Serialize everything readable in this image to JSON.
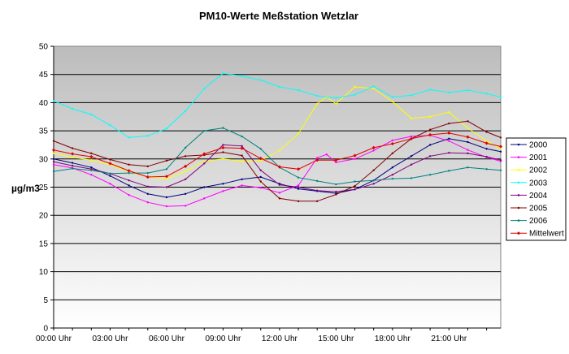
{
  "chart_data": {
    "type": "line",
    "title": "PM10-Werte Meßstation Wetzlar",
    "xlabel": "",
    "ylabel": "µg/m3",
    "ylim": [
      0,
      50
    ],
    "yticks": [
      0,
      5,
      10,
      15,
      20,
      25,
      30,
      35,
      40,
      45,
      50
    ],
    "xlim": [
      0,
      23.75
    ],
    "xticks": [
      {
        "x": 0,
        "label": "00:00 Uhr"
      },
      {
        "x": 3,
        "label": "03:00 Uhr"
      },
      {
        "x": 6,
        "label": "06:00 Uhr"
      },
      {
        "x": 9,
        "label": "09:00 Uhr"
      },
      {
        "x": 12,
        "label": "12:00 Uhr"
      },
      {
        "x": 15,
        "label": "15:00 Uhr"
      },
      {
        "x": 18,
        "label": "18:00 Uhr"
      },
      {
        "x": 21,
        "label": "21:00 Uhr"
      }
    ],
    "grid": true,
    "legend": "right",
    "series": [
      {
        "name": "2000",
        "color": "#000080",
        "points": [
          [
            0,
            30.0
          ],
          [
            1,
            29.3
          ],
          [
            2,
            28.5
          ],
          [
            3,
            27.0
          ],
          [
            4,
            25.3
          ],
          [
            5,
            23.8
          ],
          [
            6,
            23.2
          ],
          [
            7,
            23.8
          ],
          [
            8,
            25.0
          ],
          [
            9,
            25.6
          ],
          [
            10,
            26.4
          ],
          [
            11,
            26.8
          ],
          [
            12,
            25.6
          ],
          [
            13,
            24.7
          ],
          [
            14,
            24.3
          ],
          [
            15,
            23.9
          ],
          [
            16,
            24.6
          ],
          [
            17,
            26.2
          ],
          [
            18,
            28.5
          ],
          [
            19,
            30.5
          ],
          [
            20,
            32.5
          ],
          [
            21,
            33.6
          ],
          [
            22,
            33.0
          ],
          [
            23,
            31.8
          ],
          [
            23.75,
            31.3
          ]
        ]
      },
      {
        "name": "2001",
        "color": "#FF00FF",
        "points": [
          [
            0,
            29.0
          ],
          [
            1,
            28.4
          ],
          [
            2,
            27.2
          ],
          [
            3,
            25.6
          ],
          [
            4,
            23.6
          ],
          [
            5,
            22.3
          ],
          [
            6,
            21.6
          ],
          [
            7,
            21.7
          ],
          [
            8,
            23.0
          ],
          [
            9,
            24.3
          ],
          [
            10,
            25.3
          ],
          [
            11,
            24.9
          ],
          [
            12,
            24.0
          ],
          [
            13,
            25.3
          ],
          [
            14,
            30.2
          ],
          [
            14.5,
            30.8
          ],
          [
            15,
            29.4
          ],
          [
            16,
            30.0
          ],
          [
            17,
            31.5
          ],
          [
            18,
            33.3
          ],
          [
            19,
            34.0
          ],
          [
            20,
            34.2
          ],
          [
            21,
            33.2
          ],
          [
            22,
            31.6
          ],
          [
            23,
            30.3
          ],
          [
            23.75,
            29.6
          ]
        ]
      },
      {
        "name": "2002",
        "color": "#FFFF00",
        "points": [
          [
            0,
            31.0
          ],
          [
            1,
            30.3
          ],
          [
            2,
            29.8
          ],
          [
            3,
            29.0
          ],
          [
            4,
            27.8
          ],
          [
            5,
            26.8
          ],
          [
            6,
            26.5
          ],
          [
            7,
            27.8
          ],
          [
            8,
            29.6
          ],
          [
            9,
            30.0
          ],
          [
            10,
            29.6
          ],
          [
            11,
            29.7
          ],
          [
            12,
            31.5
          ],
          [
            13,
            34.5
          ],
          [
            14,
            39.8
          ],
          [
            14.5,
            41.0
          ],
          [
            15,
            39.8
          ],
          [
            16,
            42.8
          ],
          [
            17,
            42.5
          ],
          [
            18,
            40.2
          ],
          [
            19,
            37.2
          ],
          [
            20,
            37.5
          ],
          [
            21,
            38.3
          ],
          [
            22,
            35.5
          ],
          [
            23,
            33.2
          ],
          [
            23.75,
            31.8
          ]
        ]
      },
      {
        "name": "2003",
        "color": "#00FFFF",
        "points": [
          [
            0,
            40.3
          ],
          [
            1,
            38.9
          ],
          [
            2,
            37.9
          ],
          [
            3,
            36.0
          ],
          [
            4,
            33.8
          ],
          [
            5,
            34.1
          ],
          [
            6,
            35.4
          ],
          [
            7,
            38.5
          ],
          [
            8,
            42.5
          ],
          [
            9,
            45.2
          ],
          [
            10,
            44.7
          ],
          [
            11,
            44.0
          ],
          [
            12,
            42.8
          ],
          [
            13,
            42.2
          ],
          [
            14,
            41.2
          ],
          [
            15,
            40.8
          ],
          [
            16,
            41.4
          ],
          [
            17,
            42.9
          ],
          [
            18,
            41.0
          ],
          [
            19,
            41.3
          ],
          [
            20,
            42.3
          ],
          [
            21,
            41.8
          ],
          [
            22,
            42.2
          ],
          [
            23,
            41.6
          ],
          [
            23.75,
            41.0
          ]
        ]
      },
      {
        "name": "2004",
        "color": "#800080",
        "points": [
          [
            0,
            29.5
          ],
          [
            1,
            28.8
          ],
          [
            2,
            28.2
          ],
          [
            3,
            27.4
          ],
          [
            4,
            26.2
          ],
          [
            5,
            25.1
          ],
          [
            6,
            25.0
          ],
          [
            7,
            26.4
          ],
          [
            8,
            29.2
          ],
          [
            9,
            32.5
          ],
          [
            10,
            32.3
          ],
          [
            11,
            28.0
          ],
          [
            12,
            25.4
          ],
          [
            13,
            25.0
          ],
          [
            14,
            24.4
          ],
          [
            15,
            24.2
          ],
          [
            16,
            24.6
          ],
          [
            17,
            25.6
          ],
          [
            18,
            27.2
          ],
          [
            19,
            29.0
          ],
          [
            20,
            30.5
          ],
          [
            21,
            31.1
          ],
          [
            22,
            31.0
          ],
          [
            23,
            30.4
          ],
          [
            23.75,
            29.8
          ]
        ]
      },
      {
        "name": "2005",
        "color": "#800000",
        "points": [
          [
            0,
            33.2
          ],
          [
            1,
            31.9
          ],
          [
            2,
            31.0
          ],
          [
            3,
            29.9
          ],
          [
            4,
            29.0
          ],
          [
            5,
            28.7
          ],
          [
            6,
            29.7
          ],
          [
            7,
            30.5
          ],
          [
            8,
            30.7
          ],
          [
            9,
            31.2
          ],
          [
            10,
            30.6
          ],
          [
            11,
            26.0
          ],
          [
            12,
            23.0
          ],
          [
            13,
            22.5
          ],
          [
            14,
            22.5
          ],
          [
            15,
            23.7
          ],
          [
            16,
            25.2
          ],
          [
            17,
            28.0
          ],
          [
            18,
            31.0
          ],
          [
            19,
            33.6
          ],
          [
            20,
            35.2
          ],
          [
            21,
            36.3
          ],
          [
            22,
            36.7
          ],
          [
            23,
            34.8
          ],
          [
            23.75,
            33.8
          ]
        ]
      },
      {
        "name": "2006",
        "color": "#008080",
        "points": [
          [
            0,
            27.8
          ],
          [
            1,
            28.3
          ],
          [
            2,
            28.0
          ],
          [
            3,
            27.4
          ],
          [
            4,
            27.5
          ],
          [
            5,
            27.5
          ],
          [
            6,
            28.2
          ],
          [
            7,
            32.0
          ],
          [
            8,
            35.0
          ],
          [
            9,
            35.5
          ],
          [
            10,
            34.0
          ],
          [
            11,
            31.8
          ],
          [
            12,
            28.5
          ],
          [
            13,
            26.7
          ],
          [
            14,
            26.1
          ],
          [
            15,
            25.5
          ],
          [
            16,
            26.0
          ],
          [
            17,
            26.2
          ],
          [
            18,
            26.5
          ],
          [
            19,
            26.6
          ],
          [
            20,
            27.2
          ],
          [
            21,
            27.9
          ],
          [
            22,
            28.5
          ],
          [
            23,
            28.2
          ],
          [
            23.75,
            28.0
          ]
        ]
      },
      {
        "name": "Mittelwert",
        "color": "#E00000",
        "points": [
          [
            0,
            31.6
          ],
          [
            1,
            30.9
          ],
          [
            2,
            30.4
          ],
          [
            3,
            29.2
          ],
          [
            4,
            27.9
          ],
          [
            5,
            26.8
          ],
          [
            6,
            26.9
          ],
          [
            7,
            28.7
          ],
          [
            8,
            30.9
          ],
          [
            9,
            32.0
          ],
          [
            10,
            31.9
          ],
          [
            11,
            30.1
          ],
          [
            12,
            28.6
          ],
          [
            13,
            28.2
          ],
          [
            14,
            29.8
          ],
          [
            15,
            29.8
          ],
          [
            16,
            30.6
          ],
          [
            17,
            32.0
          ],
          [
            18,
            32.7
          ],
          [
            19,
            33.6
          ],
          [
            20,
            34.3
          ],
          [
            21,
            34.6
          ],
          [
            22,
            33.9
          ],
          [
            23,
            32.8
          ],
          [
            23.75,
            32.2
          ]
        ]
      }
    ]
  }
}
